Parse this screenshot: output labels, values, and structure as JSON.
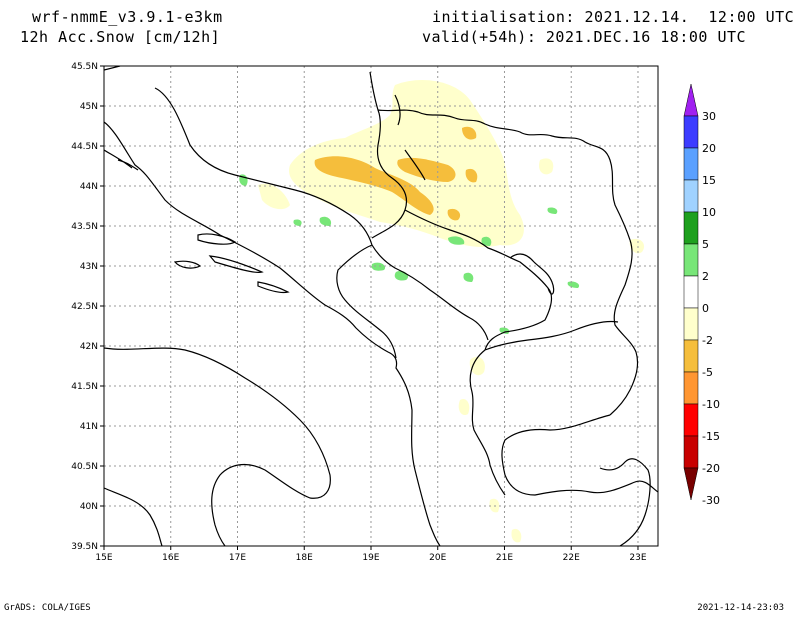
{
  "header": {
    "model": "wrf-nmmE_v3.9.1-e3km",
    "variable": "12h Acc.Snow [cm/12h]",
    "initialisation": "initialisation: 2021.12.14.  12:00 UTC",
    "valid": "valid(+54h): 2021.DEC.16 18:00 UTC"
  },
  "map": {
    "lat_labels": [
      "45.5N",
      "45N",
      "44.5N",
      "44N",
      "43.5N",
      "43N",
      "42.5N",
      "42N",
      "41.5N",
      "41N",
      "40.5N",
      "40N",
      "39.5N"
    ],
    "lon_labels": [
      "15E",
      "16E",
      "17E",
      "18E",
      "19E",
      "20E",
      "21E",
      "22E",
      "23E"
    ],
    "lat_range": [
      39.5,
      45.5
    ],
    "lon_range": [
      15,
      23.3
    ],
    "grid": "dotted"
  },
  "colorbar": {
    "labels": [
      "30",
      "20",
      "15",
      "10",
      "5",
      "2",
      "0",
      "-2",
      "-5",
      "-10",
      "-15",
      "-20",
      "-30"
    ],
    "colors": [
      "#a020f0",
      "#3c3cff",
      "#5aa0ff",
      "#a0d2ff",
      "#1ea01e",
      "#78e678",
      "#ffffff",
      "#ffffcc",
      "#f5be3c",
      "#ff9632",
      "#ff0000",
      "#c80000",
      "#780000"
    ]
  },
  "footer": {
    "left": "GrADS: COLA/IGES",
    "right": "2021-12-14-23:03"
  }
}
